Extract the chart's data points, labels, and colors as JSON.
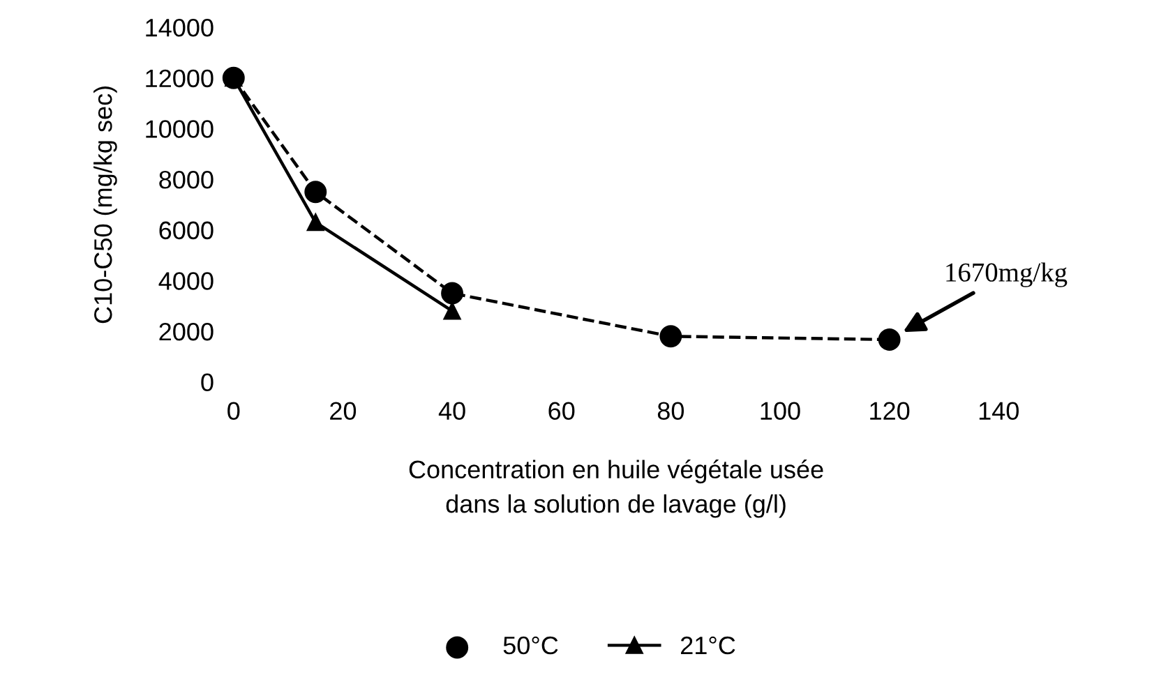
{
  "chart_data": {
    "type": "line",
    "xlabel": "Concentration en huile végétale usée\ndans la solution de lavage (g/l)",
    "ylabel": "C10-C50 (mg/kg sec)",
    "series": [
      {
        "name": "50°C",
        "type": "scatter",
        "color": "#000000",
        "marker": "circle",
        "x": [
          0,
          15,
          40,
          80,
          120
        ],
        "values": [
          12000,
          7500,
          3500,
          1800,
          1670
        ]
      },
      {
        "color": "#000000",
        "line_style": "dashed",
        "marker": "none",
        "x": [
          0,
          15,
          40,
          80,
          120
        ],
        "values": [
          12000,
          7500,
          3500,
          1800,
          1670
        ]
      },
      {
        "name": "21°C",
        "color": "#000000",
        "line_style": "solid",
        "marker": "triangle",
        "x": [
          0,
          15,
          40
        ],
        "values": [
          12000,
          6300,
          2800
        ]
      }
    ],
    "annotations": [
      {
        "text": "1670mg/kg",
        "x": 120,
        "y": 1670
      }
    ],
    "xlim": [
      0,
      140
    ],
    "xticks": [
      0,
      20,
      40,
      60,
      80,
      100,
      120,
      140
    ],
    "ylim": [
      0,
      14000
    ],
    "yticks": [
      0,
      2000,
      4000,
      6000,
      8000,
      10000,
      12000,
      14000
    ],
    "grid": false,
    "legend": "bottom"
  }
}
